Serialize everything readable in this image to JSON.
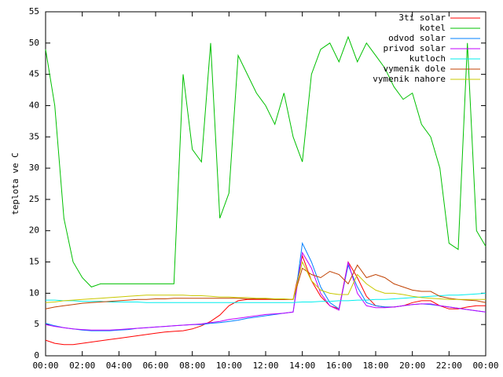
{
  "chart_data": {
    "type": "line",
    "ylabel": "teplota ve C",
    "x": [
      0,
      0.5,
      1,
      1.5,
      2,
      2.5,
      3,
      3.5,
      4,
      4.5,
      5,
      5.5,
      6,
      6.5,
      7,
      7.5,
      8,
      8.5,
      9,
      9.5,
      10,
      10.5,
      11,
      11.5,
      12,
      12.5,
      13,
      13.5,
      14,
      14.5,
      15,
      15.5,
      16,
      16.5,
      17,
      17.5,
      18,
      18.5,
      19,
      19.5,
      20,
      20.5,
      21,
      21.5,
      22,
      22.5,
      23,
      23.5,
      24
    ],
    "xlim": [
      0,
      24
    ],
    "xticks": [
      {
        "value": 0,
        "label": "00:00"
      },
      {
        "value": 2,
        "label": "02:00"
      },
      {
        "value": 4,
        "label": "04:00"
      },
      {
        "value": 6,
        "label": "06:00"
      },
      {
        "value": 8,
        "label": "08:00"
      },
      {
        "value": 10,
        "label": "10:00"
      },
      {
        "value": 12,
        "label": "12:00"
      },
      {
        "value": 14,
        "label": "14:00"
      },
      {
        "value": 16,
        "label": "16:00"
      },
      {
        "value": 18,
        "label": "18:00"
      },
      {
        "value": 20,
        "label": "20:00"
      },
      {
        "value": 22,
        "label": "22:00"
      },
      {
        "value": 24,
        "label": "00:00"
      }
    ],
    "ylim": [
      0,
      55
    ],
    "yticks": [
      0,
      5,
      10,
      15,
      20,
      25,
      30,
      35,
      40,
      45,
      50,
      55
    ],
    "legend": "top-right",
    "series": [
      {
        "name": "3ti solar",
        "color": "#ff0000",
        "values": [
          2.5,
          2.0,
          1.8,
          1.8,
          2.0,
          2.2,
          2.4,
          2.6,
          2.8,
          3.0,
          3.2,
          3.4,
          3.6,
          3.8,
          3.9,
          4.0,
          4.3,
          4.8,
          5.5,
          6.5,
          8.0,
          8.8,
          9.0,
          9.0,
          9.0,
          9.0,
          9.0,
          9.0,
          16.0,
          12.0,
          9.5,
          8.0,
          7.5,
          15.0,
          12.5,
          9.5,
          8.0,
          7.8,
          7.8,
          8.0,
          8.5,
          8.8,
          8.8,
          8.0,
          7.5,
          7.5,
          7.8,
          8.0,
          8.0
        ]
      },
      {
        "name": "kotel",
        "color": "#00c000",
        "values": [
          49,
          40,
          22,
          15,
          12.5,
          11,
          11.5,
          11.5,
          11.5,
          11.5,
          11.5,
          11.5,
          11.5,
          11.5,
          11.5,
          45,
          33,
          31,
          50,
          22,
          26,
          48,
          45,
          42,
          40,
          37,
          42,
          35,
          31,
          45,
          49,
          50,
          47,
          51,
          47,
          50,
          48,
          46,
          43,
          41,
          42,
          37,
          35,
          30,
          18,
          17,
          50,
          20,
          17.5
        ]
      },
      {
        "name": "odvod solar",
        "color": "#0080ff",
        "values": [
          5.2,
          4.8,
          4.5,
          4.3,
          4.1,
          4.0,
          4.0,
          4.0,
          4.1,
          4.2,
          4.4,
          4.5,
          4.6,
          4.7,
          4.8,
          4.9,
          5.0,
          5.0,
          5.2,
          5.3,
          5.5,
          5.7,
          6.0,
          6.2,
          6.4,
          6.6,
          6.8,
          7.0,
          18.0,
          15.0,
          11.0,
          8.5,
          7.5,
          14.5,
          11.0,
          8.5,
          8.0,
          7.8,
          7.8,
          8.0,
          8.2,
          8.3,
          8.2,
          8.0,
          7.8,
          7.6,
          7.4,
          7.2,
          7.0
        ]
      },
      {
        "name": "privod solar",
        "color": "#c000ff",
        "values": [
          5.0,
          4.7,
          4.5,
          4.3,
          4.2,
          4.1,
          4.1,
          4.1,
          4.2,
          4.3,
          4.4,
          4.5,
          4.6,
          4.7,
          4.8,
          4.9,
          5.0,
          5.1,
          5.3,
          5.5,
          5.8,
          6.0,
          6.2,
          6.4,
          6.6,
          6.7,
          6.8,
          7.0,
          16.5,
          14.0,
          10.0,
          8.0,
          7.3,
          15.0,
          10.0,
          8.0,
          7.7,
          7.7,
          7.8,
          8.0,
          8.2,
          8.3,
          8.3,
          8.0,
          7.8,
          7.6,
          7.4,
          7.2,
          7.0
        ]
      },
      {
        "name": "kutloch",
        "color": "#00eeee",
        "values": [
          8.9,
          8.9,
          8.8,
          8.8,
          8.7,
          8.7,
          8.7,
          8.6,
          8.6,
          8.6,
          8.6,
          8.5,
          8.5,
          8.5,
          8.5,
          8.5,
          8.5,
          8.5,
          8.5,
          8.5,
          8.5,
          8.5,
          8.5,
          8.5,
          8.5,
          8.5,
          8.5,
          8.5,
          8.6,
          8.6,
          8.7,
          8.7,
          8.8,
          8.8,
          8.9,
          8.9,
          9.0,
          9.0,
          9.1,
          9.2,
          9.3,
          9.4,
          9.5,
          9.6,
          9.7,
          9.7,
          9.8,
          9.9,
          10.0
        ]
      },
      {
        "name": "vymenik dole",
        "color": "#c04000",
        "values": [
          7.5,
          7.8,
          8.0,
          8.2,
          8.4,
          8.5,
          8.6,
          8.7,
          8.8,
          8.9,
          9.0,
          9.0,
          9.1,
          9.1,
          9.2,
          9.2,
          9.2,
          9.2,
          9.2,
          9.2,
          9.2,
          9.2,
          9.1,
          9.1,
          9.1,
          9.0,
          9.0,
          9.0,
          14.0,
          13.0,
          12.5,
          13.5,
          13.0,
          11.5,
          14.5,
          12.5,
          13.0,
          12.5,
          11.5,
          11.0,
          10.5,
          10.3,
          10.3,
          9.5,
          9.2,
          9.0,
          8.9,
          8.8,
          8.5
        ]
      },
      {
        "name": "vymenik nahore",
        "color": "#c8c800",
        "values": [
          8.5,
          8.6,
          8.8,
          8.9,
          9.0,
          9.1,
          9.2,
          9.3,
          9.4,
          9.5,
          9.6,
          9.7,
          9.7,
          9.7,
          9.7,
          9.7,
          9.6,
          9.6,
          9.5,
          9.4,
          9.4,
          9.3,
          9.3,
          9.2,
          9.2,
          9.1,
          9.1,
          9.0,
          15.0,
          12.0,
          10.5,
          10.0,
          9.8,
          9.8,
          13.0,
          11.5,
          10.5,
          10.0,
          10.0,
          9.8,
          9.5,
          9.3,
          9.2,
          9.1,
          9.0,
          9.0,
          9.0,
          9.0,
          9.0
        ]
      }
    ]
  }
}
